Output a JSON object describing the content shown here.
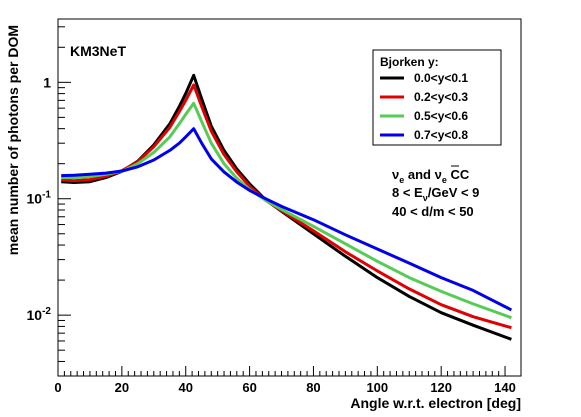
{
  "chart_data": {
    "type": "line",
    "title": "",
    "experiment_label": "KM3NeT",
    "xlabel": "Angle w.r.t. electron [deg]",
    "ylabel": "mean number of photons per DOM",
    "xlim": [
      0,
      145
    ],
    "ylim": [
      0.003,
      3.5
    ],
    "yscale": "log",
    "grid": false,
    "x_ticks": [
      "0",
      "20",
      "40",
      "60",
      "80",
      "100",
      "120",
      "140"
    ],
    "y_ticks": [
      {
        "value": 1,
        "base": "1",
        "exp": ""
      },
      {
        "value": 0.1,
        "base": "10",
        "exp": "-1"
      },
      {
        "value": 0.01,
        "base": "10",
        "exp": "-2"
      }
    ],
    "legend": {
      "title": "Bjorken y:",
      "position": "top-right"
    },
    "annotation_lines": [
      {
        "nu1": "ν",
        "sub1": "e",
        "mid": " and ",
        "nu2": "ν",
        "sub2": "e",
        "tail": " CC"
      },
      {
        "pre": "8 < E",
        "sub": "ν",
        "post": "/GeV < 9"
      },
      {
        "text": "40 < d/m < 50"
      }
    ],
    "series": [
      {
        "name": "0.0<y<0.1",
        "color": "#000000",
        "x": [
          1,
          5,
          10,
          15,
          20,
          25,
          30,
          35,
          38,
          40,
          42.5,
          45,
          48,
          52,
          56,
          60,
          65,
          70,
          80,
          90,
          100,
          110,
          120,
          130,
          142
        ],
        "y": [
          0.14,
          0.138,
          0.14,
          0.152,
          0.172,
          0.21,
          0.29,
          0.44,
          0.62,
          0.8,
          1.15,
          0.72,
          0.42,
          0.26,
          0.18,
          0.134,
          0.098,
          0.078,
          0.05,
          0.032,
          0.021,
          0.0145,
          0.0105,
          0.0082,
          0.0062
        ]
      },
      {
        "name": "0.2<y<0.3",
        "color": "#e00000",
        "x": [
          1,
          5,
          10,
          15,
          20,
          25,
          30,
          35,
          38,
          40,
          42.5,
          45,
          48,
          52,
          56,
          60,
          65,
          70,
          80,
          90,
          100,
          110,
          120,
          130,
          142
        ],
        "y": [
          0.145,
          0.143,
          0.146,
          0.156,
          0.174,
          0.208,
          0.28,
          0.41,
          0.56,
          0.7,
          0.95,
          0.62,
          0.38,
          0.24,
          0.17,
          0.128,
          0.097,
          0.079,
          0.053,
          0.035,
          0.024,
          0.0168,
          0.0123,
          0.0097,
          0.0078
        ]
      },
      {
        "name": "0.5<y<0.6",
        "color": "#55cc55",
        "x": [
          1,
          5,
          10,
          15,
          20,
          25,
          30,
          35,
          38,
          40,
          42.5,
          45,
          48,
          52,
          56,
          60,
          65,
          70,
          80,
          90,
          100,
          110,
          120,
          130,
          142
        ],
        "y": [
          0.152,
          0.152,
          0.155,
          0.162,
          0.172,
          0.2,
          0.25,
          0.34,
          0.44,
          0.53,
          0.66,
          0.46,
          0.3,
          0.2,
          0.15,
          0.12,
          0.097,
          0.081,
          0.058,
          0.041,
          0.029,
          0.021,
          0.016,
          0.0125,
          0.0095
        ]
      },
      {
        "name": "0.7<y<0.8",
        "color": "#0000ee",
        "x": [
          1,
          5,
          10,
          15,
          20,
          25,
          30,
          35,
          38,
          40,
          42.5,
          45,
          48,
          52,
          56,
          60,
          65,
          70,
          80,
          90,
          100,
          110,
          120,
          130,
          142
        ],
        "y": [
          0.158,
          0.159,
          0.162,
          0.166,
          0.173,
          0.188,
          0.215,
          0.26,
          0.3,
          0.34,
          0.4,
          0.3,
          0.22,
          0.17,
          0.139,
          0.118,
          0.1,
          0.086,
          0.066,
          0.049,
          0.037,
          0.028,
          0.021,
          0.0163,
          0.0111
        ]
      }
    ]
  }
}
